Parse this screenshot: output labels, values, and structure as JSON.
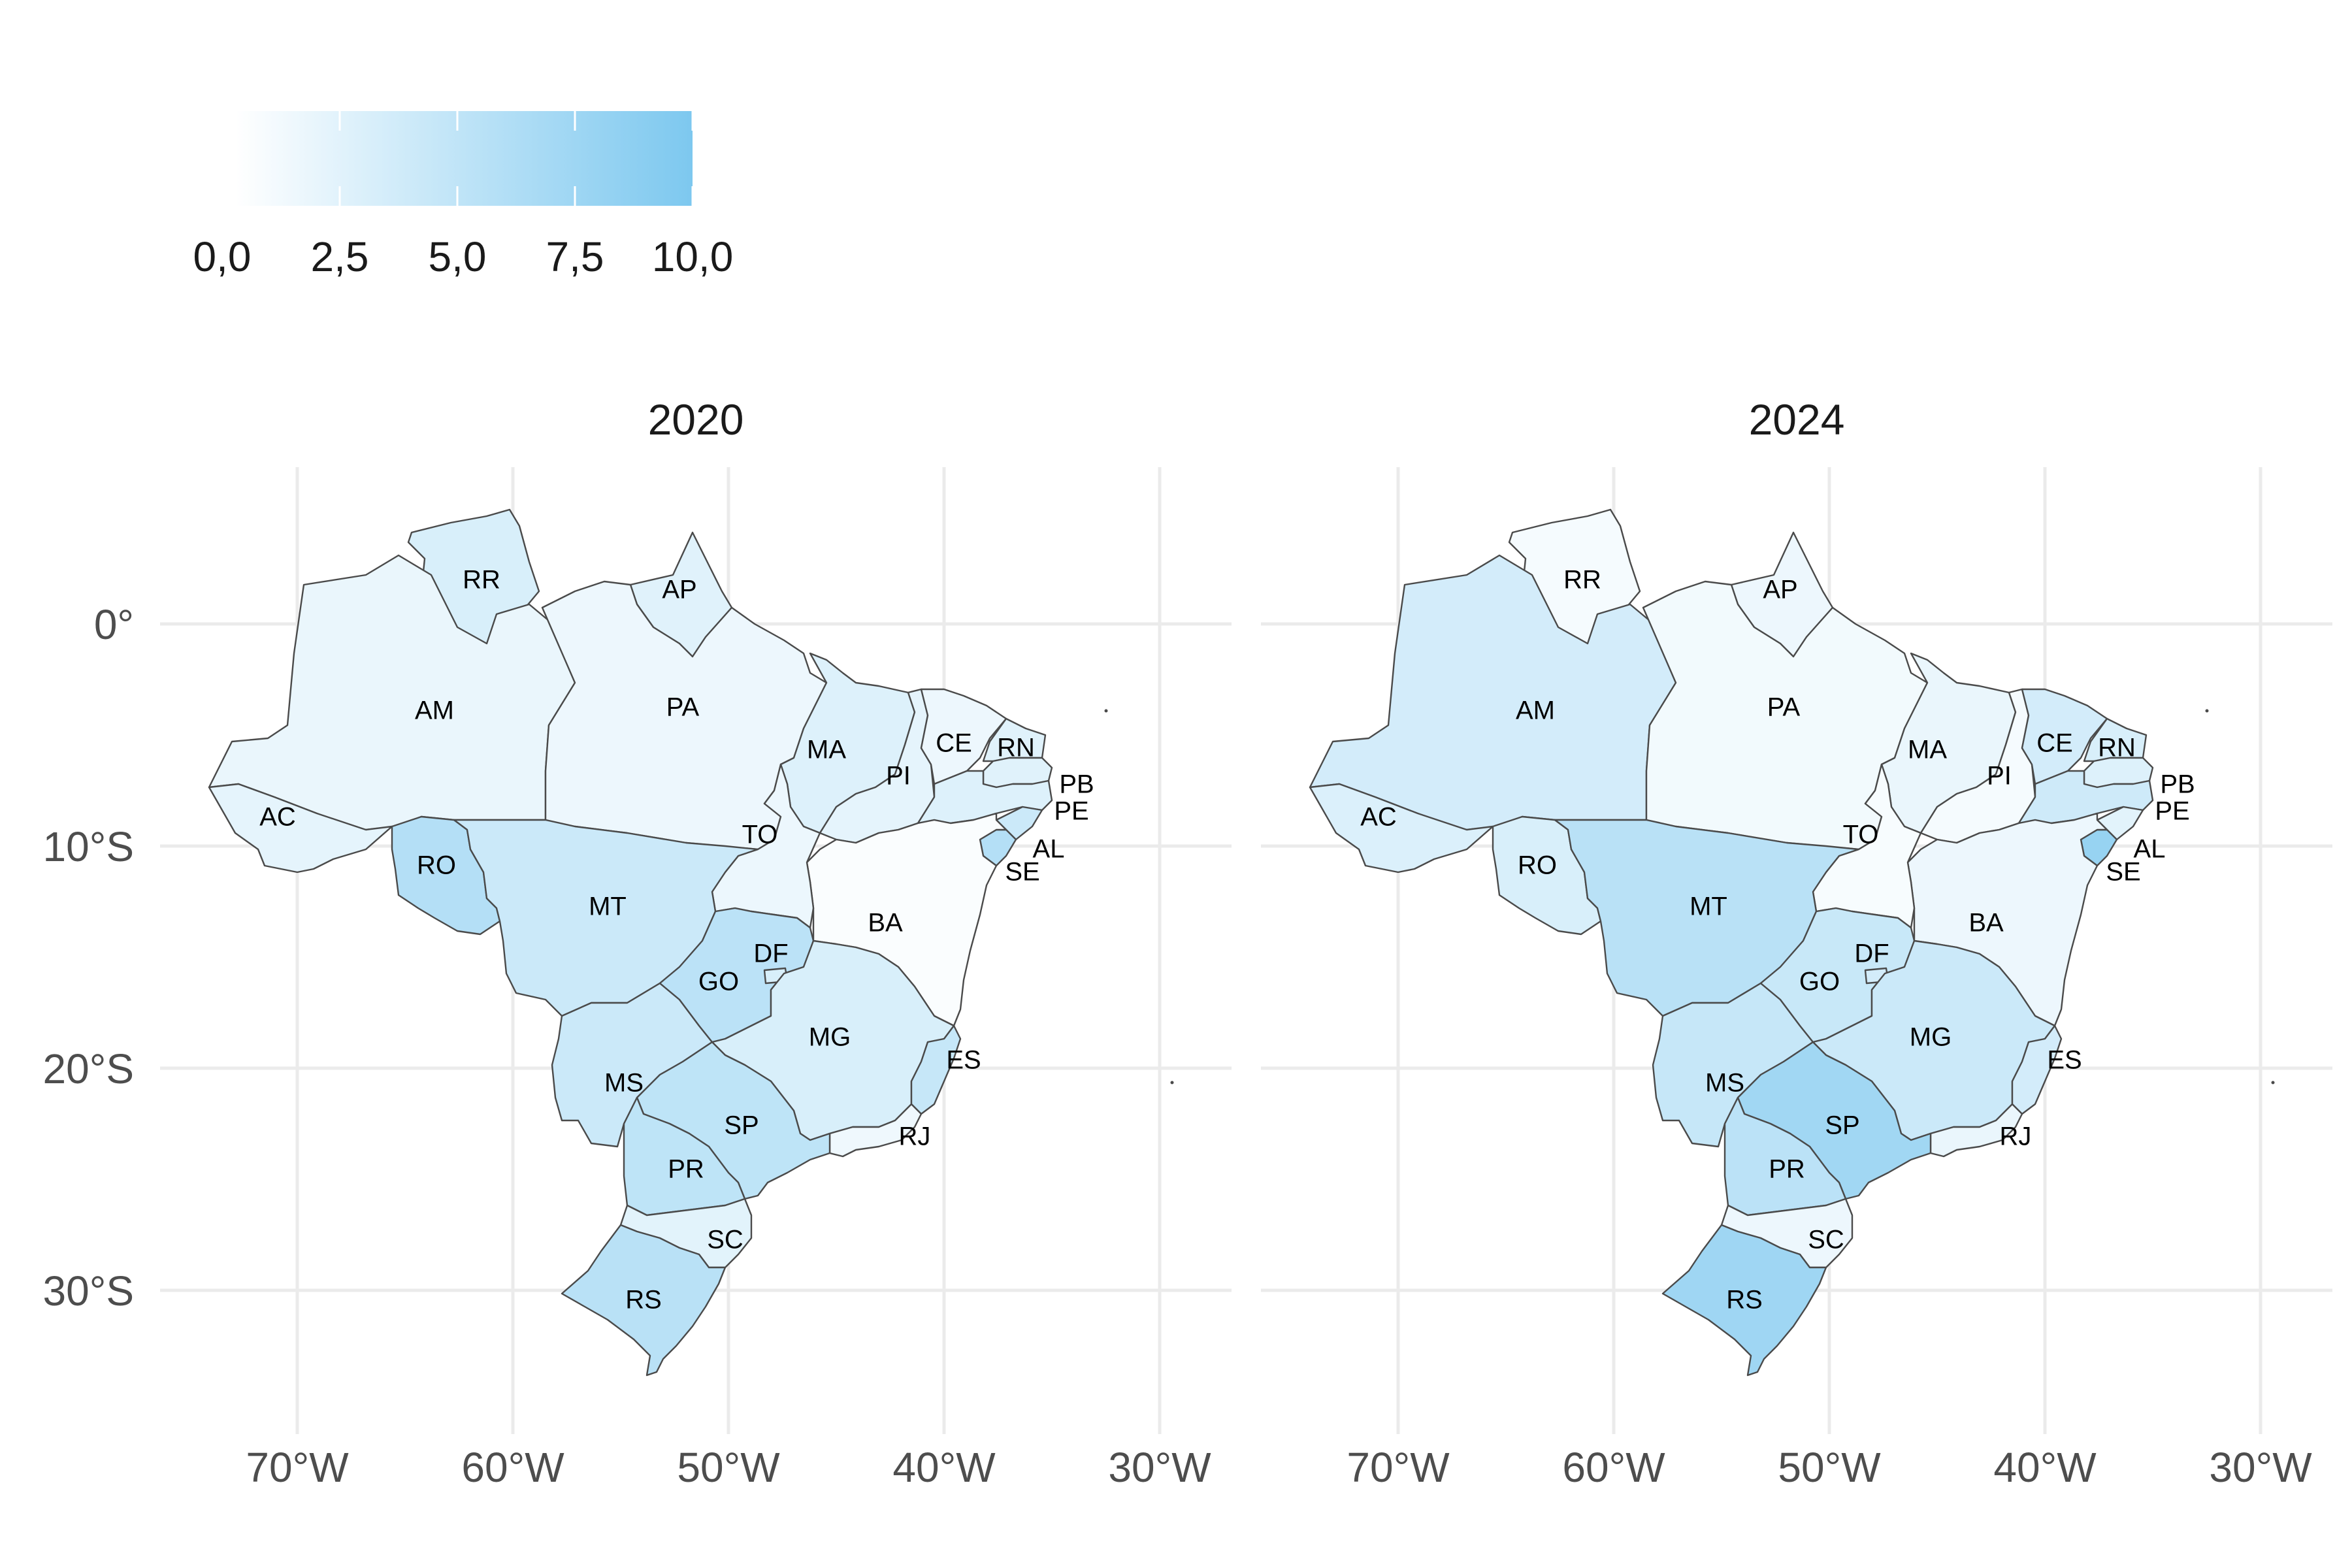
{
  "legend": {
    "ticks": [
      "0,0",
      "2,5",
      "5,0",
      "7,5",
      "10,0"
    ],
    "min": 0,
    "max": 10,
    "color_low": "#ffffff",
    "color_high": "#7dc8ef"
  },
  "axes": {
    "x_ticks": [
      "70°W",
      "60°W",
      "50°W",
      "40°W",
      "30°W"
    ],
    "y_ticks": [
      "0°",
      "10°S",
      "20°S",
      "30°S"
    ]
  },
  "panels": [
    {
      "title": "2020",
      "values": {
        "AC": 2.0,
        "AM": 1.6,
        "RR": 3.0,
        "AP": 2.4,
        "PA": 1.4,
        "TO": 1.5,
        "RO": 5.8,
        "MT": 4.0,
        "MS": 4.0,
        "GO": 5.2,
        "DF": 3.0,
        "MA": 2.6,
        "PI": 2.0,
        "CE": 1.4,
        "RN": 2.4,
        "PB": 2.4,
        "PE": 2.6,
        "AL": 4.0,
        "SE": 5.8,
        "BA": 0.4,
        "MG": 3.0,
        "ES": 4.4,
        "RJ": 1.2,
        "SP": 5.0,
        "PR": 5.0,
        "SC": 2.2,
        "RS": 5.4
      }
    },
    {
      "title": "2024",
      "values": {
        "AC": 2.8,
        "AM": 3.4,
        "RR": 0.8,
        "AP": 1.4,
        "PA": 1.0,
        "TO": 0.6,
        "RO": 3.0,
        "MT": 5.4,
        "MS": 4.4,
        "GO": 4.2,
        "DF": 3.4,
        "MA": 1.6,
        "PI": 0.8,
        "CE": 3.4,
        "RN": 3.0,
        "PB": 2.6,
        "PE": 3.8,
        "AL": 2.2,
        "SE": 8.0,
        "BA": 1.4,
        "MG": 4.0,
        "ES": 3.4,
        "RJ": 1.6,
        "SP": 7.2,
        "PR": 5.2,
        "SC": 1.4,
        "RS": 7.4
      }
    }
  ]
}
